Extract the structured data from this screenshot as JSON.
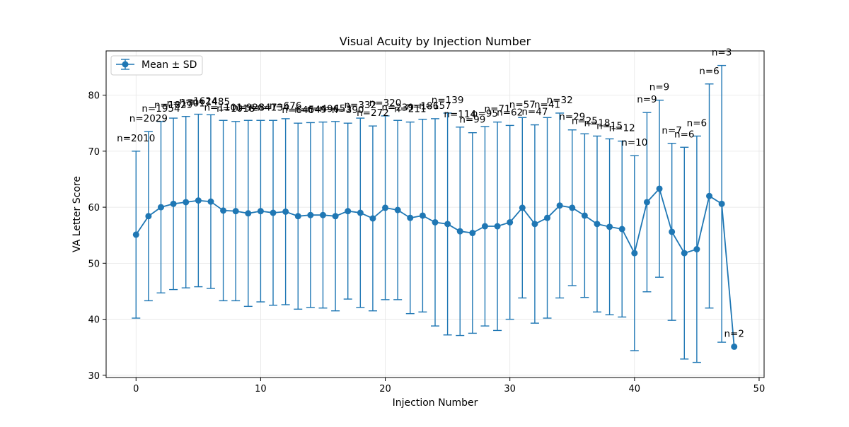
{
  "chart_data": {
    "type": "line",
    "title": "Visual Acuity by Injection Number",
    "xlabel": "Injection Number",
    "ylabel": "VA Letter Score",
    "xlim": [
      -2.4,
      50.4
    ],
    "ylim": [
      29.6,
      87.9
    ],
    "xticks": [
      0,
      10,
      20,
      30,
      40,
      50
    ],
    "yticks": [
      30,
      40,
      50,
      60,
      70,
      80
    ],
    "grid": true,
    "legend": {
      "placement": "top-left",
      "label": "Mean ± SD"
    },
    "colors": {
      "series": "#1f77b4",
      "grid": "#e6e6e6",
      "axis": "#000000"
    },
    "series": [
      {
        "name": "Mean ± SD",
        "x": [
          0,
          1,
          2,
          3,
          4,
          5,
          6,
          7,
          8,
          9,
          10,
          11,
          12,
          13,
          14,
          15,
          16,
          17,
          18,
          19,
          20,
          21,
          22,
          23,
          24,
          25,
          26,
          27,
          28,
          29,
          30,
          31,
          32,
          33,
          34,
          35,
          36,
          37,
          38,
          39,
          40,
          41,
          42,
          43,
          44,
          45,
          46,
          47,
          48
        ],
        "mean": [
          55.1,
          58.4,
          60.0,
          60.6,
          60.9,
          61.2,
          61.0,
          59.4,
          59.3,
          58.9,
          59.3,
          59.0,
          59.2,
          58.4,
          58.6,
          58.6,
          58.4,
          59.3,
          59.0,
          58.0,
          59.9,
          59.5,
          58.1,
          58.5,
          57.3,
          57.0,
          55.7,
          55.4,
          56.6,
          56.6,
          57.3,
          59.9,
          57.0,
          58.1,
          60.3,
          59.9,
          58.5,
          57.0,
          56.5,
          56.1,
          51.8,
          60.9,
          63.3,
          55.6,
          51.8,
          52.5,
          62.0,
          60.6,
          35.1
        ],
        "sd": [
          14.9,
          15.1,
          15.3,
          15.3,
          15.3,
          15.4,
          15.5,
          16.1,
          16.0,
          16.6,
          16.2,
          16.5,
          16.6,
          16.6,
          16.5,
          16.6,
          16.9,
          15.7,
          16.9,
          16.5,
          16.4,
          16.0,
          17.1,
          17.2,
          18.5,
          19.8,
          18.6,
          17.9,
          17.8,
          18.6,
          17.3,
          16.1,
          17.7,
          17.9,
          16.5,
          13.9,
          14.6,
          15.7,
          15.7,
          15.7,
          17.4,
          16.0,
          15.8,
          15.8,
          18.9,
          20.2,
          20.0,
          24.7,
          0
        ],
        "n_labels": [
          "n=2010",
          "n=2029",
          "n=1954",
          "n=1829",
          "n=1701",
          "n=1624",
          "n=1485",
          "n=1101",
          "n=1018",
          "n=928",
          "n=841",
          "n=734",
          "n=676",
          "n=640",
          "n=549",
          "n=496",
          "n=453",
          "n=390",
          "n=332",
          "n=272",
          "n=320",
          "n=239",
          "n=211",
          "n=186",
          "n=157",
          "n=139",
          "n=114",
          "n=99",
          "n=95",
          "n=71",
          "n=62",
          "n=57",
          "n=47",
          "n=41",
          "n=32",
          "n=29",
          "n=25",
          "n=18",
          "n=15",
          "n=12",
          "n=10",
          "n=9",
          "n=9",
          "n=7",
          "n=6",
          "n=6",
          "n=6",
          "n=3",
          "n=2"
        ]
      }
    ]
  }
}
